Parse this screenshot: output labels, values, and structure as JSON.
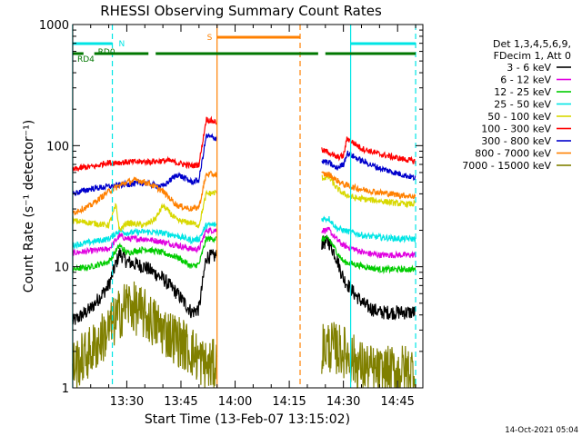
{
  "chart_data": {
    "type": "line",
    "title": "RHESSI Observing Summary Count Rates",
    "xlabel": "Start Time (13-Feb-07 13:15:02)",
    "ylabel": "Count Rate (s⁻¹ detector⁻¹)",
    "y_scale": "log",
    "ylim": [
      1,
      1000
    ],
    "xlim": [
      "13:15:02",
      "14:52:00"
    ],
    "x_ticks": [
      "13:30",
      "13:45",
      "14:00",
      "14:15",
      "14:30",
      "14:45"
    ],
    "y_ticks": [
      "1",
      "10",
      "100",
      "1000"
    ],
    "footer_date": "14-Oct-2021 05:04",
    "legend_header": [
      "Det 1,3,4,5,6,9,",
      "FDecim 1, Att 0"
    ],
    "legend_placement": "right",
    "series": [
      {
        "name": "3 - 6 keV",
        "color": "#000000",
        "x": [
          "13:15",
          "13:20",
          "13:25",
          "13:28",
          "13:30",
          "13:35",
          "13:40",
          "13:44",
          "13:48",
          "13:50",
          "13:52",
          "14:26",
          "14:28",
          "14:30",
          "14:33",
          "14:36",
          "14:40",
          "14:46",
          "14:50"
        ],
        "values": [
          3.5,
          4.5,
          7,
          13,
          11,
          10,
          8,
          6,
          4.2,
          4.5,
          12,
          16,
          12,
          8,
          6,
          4.8,
          4.2,
          4.2,
          4.2
        ]
      },
      {
        "name": "6 - 12 keV",
        "color": "#e000e0",
        "x": [
          "13:15",
          "13:20",
          "13:25",
          "13:28",
          "13:30",
          "13:35",
          "13:40",
          "13:44",
          "13:48",
          "13:50",
          "13:52",
          "14:26",
          "14:28",
          "14:30",
          "14:33",
          "14:36",
          "14:40",
          "14:46",
          "14:50"
        ],
        "values": [
          13,
          13.5,
          14,
          18,
          17,
          17,
          16,
          15,
          14,
          14,
          20,
          20,
          17,
          15,
          14,
          13,
          12.5,
          12.5,
          12.5
        ]
      },
      {
        "name": "12 - 25 keV",
        "color": "#00cc00",
        "x": [
          "13:15",
          "13:20",
          "13:25",
          "13:28",
          "13:30",
          "13:35",
          "13:40",
          "13:44",
          "13:48",
          "13:50",
          "13:52",
          "14:26",
          "14:28",
          "14:30",
          "14:33",
          "14:36",
          "14:40",
          "14:46",
          "14:50"
        ],
        "values": [
          9.5,
          10,
          11,
          15,
          13,
          14,
          13,
          12,
          10,
          10.5,
          17,
          17,
          13.5,
          11,
          10.5,
          10,
          9.5,
          9.5,
          9.5
        ]
      },
      {
        "name": "25 - 50 keV",
        "color": "#00e5e5",
        "x": [
          "13:15",
          "13:20",
          "13:25",
          "13:28",
          "13:30",
          "13:35",
          "13:40",
          "13:44",
          "13:48",
          "13:50",
          "13:52",
          "14:26",
          "14:28",
          "14:30",
          "14:33",
          "14:36",
          "14:40",
          "14:46",
          "14:50"
        ],
        "values": [
          15,
          16,
          17,
          20,
          19,
          19.5,
          19,
          18,
          16.5,
          17,
          22,
          25,
          21,
          20,
          19,
          18,
          17.5,
          17,
          17
        ]
      },
      {
        "name": "50 - 100 keV",
        "color": "#d8d800",
        "x": [
          "13:15",
          "13:20",
          "13:25",
          "13:27",
          "13:28",
          "13:30",
          "13:35",
          "13:38",
          "13:40",
          "13:44",
          "13:48",
          "13:50",
          "13:52",
          "14:26",
          "14:28",
          "14:30",
          "14:33",
          "14:36",
          "14:40",
          "14:46",
          "14:50"
        ],
        "values": [
          24,
          23,
          22,
          32,
          20,
          23,
          22,
          25,
          32,
          24,
          23,
          22,
          40,
          55,
          45,
          40,
          37,
          36,
          35,
          33,
          33
        ]
      },
      {
        "name": "100 - 300 keV",
        "color": "#ff0000",
        "x": [
          "13:15",
          "13:18",
          "13:22",
          "13:24",
          "13:42",
          "13:44",
          "13:48",
          "13:50",
          "13:52",
          "14:26",
          "14:28",
          "14:30",
          "14:31",
          "14:35",
          "14:40",
          "14:46",
          "14:50"
        ],
        "values": [
          63,
          66,
          68,
          72,
          75,
          72,
          68,
          70,
          165,
          88,
          80,
          82,
          115,
          95,
          85,
          78,
          74
        ]
      },
      {
        "name": "300 - 800 keV",
        "color": "#0000cc",
        "x": [
          "13:15",
          "13:20",
          "13:25",
          "13:30",
          "13:35",
          "13:40",
          "13:44",
          "13:48",
          "13:50",
          "13:52",
          "14:26",
          "14:28",
          "14:30",
          "14:31",
          "14:35",
          "14:40",
          "14:46",
          "14:50"
        ],
        "values": [
          40,
          44,
          46,
          48,
          49,
          46,
          58,
          50,
          52,
          120,
          72,
          65,
          70,
          87,
          75,
          65,
          58,
          54
        ]
      },
      {
        "name": "800 - 7000 keV",
        "color": "#ff8000",
        "x": [
          "13:15",
          "13:20",
          "13:25",
          "13:30",
          "13:33",
          "13:36",
          "13:40",
          "13:44",
          "13:48",
          "13:50",
          "13:52",
          "14:26",
          "14:28",
          "14:30",
          "14:33",
          "14:36",
          "14:40",
          "14:46",
          "14:50"
        ],
        "values": [
          28,
          32,
          42,
          50,
          52,
          49,
          42,
          32,
          30,
          31,
          58,
          58,
          52,
          48,
          45,
          43,
          41,
          39,
          38
        ]
      },
      {
        "name": "7000 - 15000 keV",
        "color": "#808000",
        "x": [
          "13:15",
          "13:20",
          "13:25",
          "13:30",
          "13:35",
          "13:40",
          "13:44",
          "13:48",
          "13:52",
          "14:26",
          "14:30",
          "14:35",
          "14:40",
          "14:46",
          "14:50"
        ],
        "values": [
          1.5,
          2,
          3,
          5,
          4,
          3,
          2.5,
          2,
          1.5,
          2.2,
          2,
          1.5,
          1.3,
          1.4,
          1.4
        ]
      }
    ],
    "annotations": [
      {
        "label": "RD0",
        "color": "#00e5e5",
        "segments": [
          [
            "13:15",
            "13:26"
          ],
          [
            "14:32",
            "14:50"
          ]
        ]
      },
      {
        "label": "RD4",
        "color": "#007700",
        "segments": [
          [
            "13:15",
            "13:18"
          ],
          [
            "13:21",
            "13:36"
          ],
          [
            "13:38",
            "14:18"
          ],
          [
            "14:18",
            "14:23"
          ],
          [
            "14:25",
            "14:50"
          ]
        ]
      },
      {
        "label": "N",
        "color": "#00e5e5",
        "at": "13:26"
      },
      {
        "label": "S",
        "color": "#ff8000",
        "segments": [
          [
            "13:55",
            "14:18"
          ]
        ]
      }
    ],
    "vertical_lines": [
      {
        "time": "13:15",
        "color": "#00e5e5",
        "style": "solid"
      },
      {
        "time": "13:26",
        "color": "#00e5e5",
        "style": "dashed"
      },
      {
        "time": "13:55",
        "color": "#ff8000",
        "style": "solid"
      },
      {
        "time": "14:18",
        "color": "#ff8000",
        "style": "dashed"
      },
      {
        "time": "14:32",
        "color": "#00e5e5",
        "style": "solid"
      },
      {
        "time": "14:50",
        "color": "#00e5e5",
        "style": "dashed"
      }
    ],
    "gaps": [
      [
        "13:55",
        "14:24"
      ]
    ],
    "grid": false
  }
}
